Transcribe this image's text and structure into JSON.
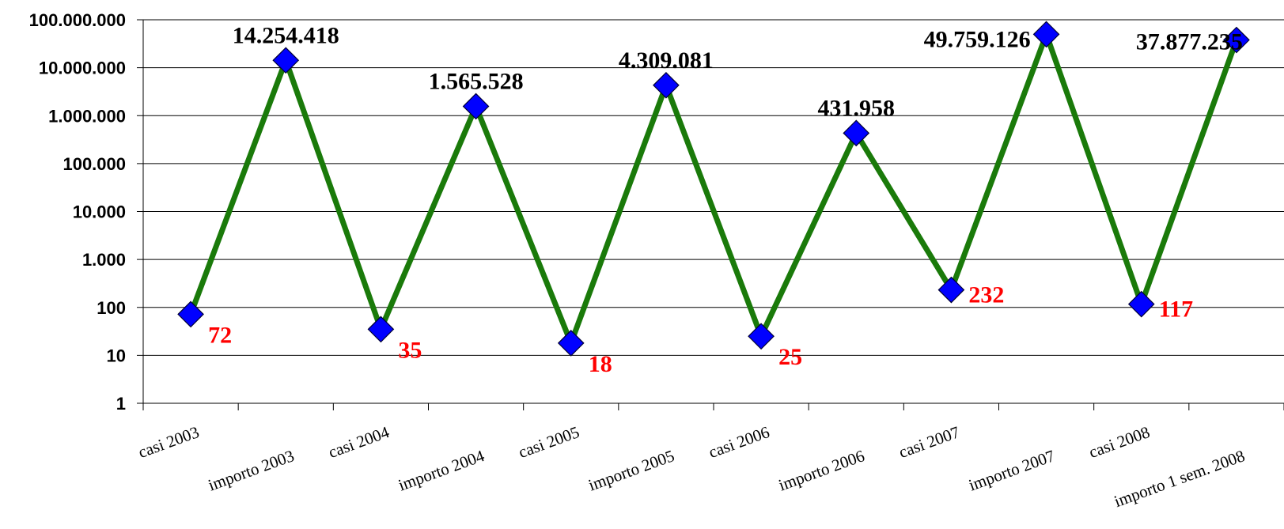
{
  "chart_data": {
    "type": "line",
    "categories": [
      "casi 2003",
      "importo  2003",
      "casi 2004",
      "importo  2004",
      "casi 2005",
      "importo 2005",
      "casi 2006",
      "importo  2006",
      "casi 2007",
      "importo  2007",
      "casi 2008",
      "importo 1 sem. 2008"
    ],
    "series": [
      {
        "values": [
          72,
          14254418,
          35,
          1565528,
          18,
          4309081,
          25,
          431958,
          232,
          49759126,
          117,
          37877235
        ],
        "labels": [
          "72",
          "14.254.418",
          "35",
          "1.565.528",
          "18",
          "4.309.081",
          "25",
          "431.958",
          "232",
          "49.759.126",
          "117",
          "37.877.235"
        ],
        "line_color": "#1a7a0a",
        "marker_color": "#0000ff",
        "marker": "diamond"
      }
    ],
    "yscale": "log",
    "ylim": [
      1,
      100000000
    ],
    "yticks": [
      "1",
      "10",
      "100",
      "1.000",
      "10.000",
      "100.000",
      "1.000.000",
      "10.000.000",
      "100.000.000"
    ],
    "grid": true,
    "label_colors": {
      "casi": "#ff0000",
      "importo": "#000000"
    }
  }
}
